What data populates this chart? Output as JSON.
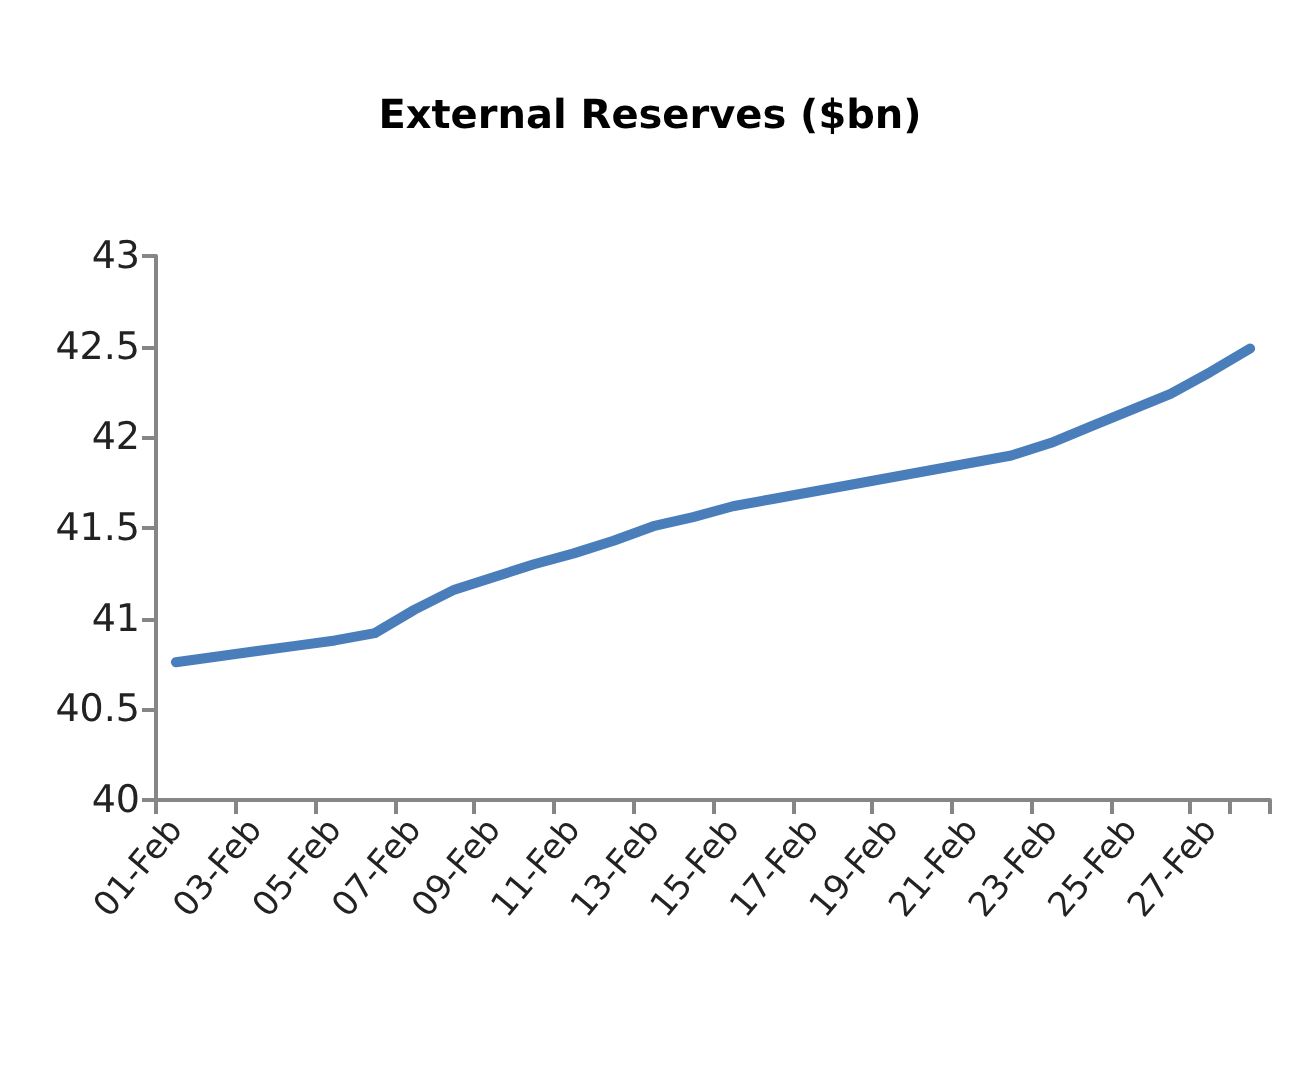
{
  "chart_data": {
    "type": "line",
    "title": "External Reserves ($bn)",
    "categories": [
      "01-Feb",
      null,
      "03-Feb",
      null,
      "05-Feb",
      null,
      "07-Feb",
      null,
      "09-Feb",
      null,
      "11-Feb",
      null,
      "13-Feb",
      null,
      "15-Feb",
      null,
      "17-Feb",
      null,
      "19-Feb",
      null,
      "21-Feb",
      null,
      "23-Feb",
      null,
      "25-Feb",
      null,
      "27-Feb",
      null
    ],
    "series": [
      {
        "color": "#4a7ebb",
        "values": [
          40.76,
          40.79,
          40.82,
          40.85,
          40.88,
          40.92,
          41.05,
          41.16,
          41.23,
          41.3,
          41.36,
          41.43,
          41.51,
          41.56,
          41.62,
          41.66,
          41.7,
          41.74,
          41.78,
          41.82,
          41.86,
          41.9,
          41.97,
          42.06,
          42.15,
          42.24,
          42.36,
          42.49
        ]
      }
    ],
    "ylim": [
      40,
      43
    ],
    "yticks": [
      40,
      40.5,
      41,
      41.5,
      42,
      42.5,
      43
    ],
    "grid": false,
    "marker": "none",
    "line_style": "solid"
  }
}
